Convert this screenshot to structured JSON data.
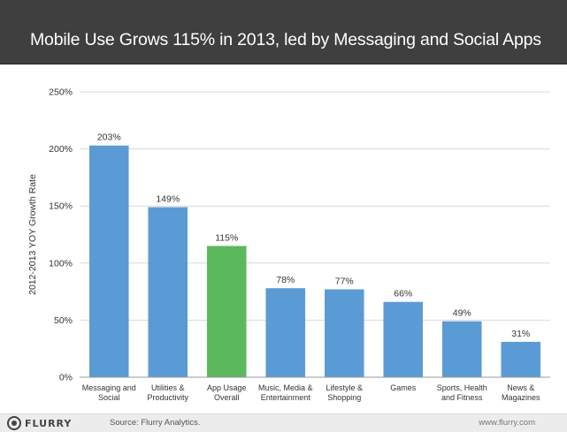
{
  "header": {
    "title": "Mobile Use Grows 115% in 2013, led by Messaging and Social Apps"
  },
  "chart_data": {
    "type": "bar",
    "title": "Mobile Use Grows 115% in 2013, led by Messaging and Social Apps",
    "xlabel": "",
    "ylabel": "2012-2013 YOY Growth Rate",
    "ylim": [
      0,
      250
    ],
    "yticks": [
      0,
      50,
      100,
      150,
      200,
      250
    ],
    "ytick_labels": [
      "0%",
      "50%",
      "100%",
      "150%",
      "200%",
      "250%"
    ],
    "grid": true,
    "legend": "none",
    "categories": [
      [
        "Messaging and",
        "Social"
      ],
      [
        "Utilities &",
        "Productivity"
      ],
      [
        "App Usage",
        "Overall"
      ],
      [
        "Music, Media &",
        "Entertainment"
      ],
      [
        "Lifestyle &",
        "Shopping"
      ],
      [
        "Games"
      ],
      [
        "Sports, Health",
        "and Fitness"
      ],
      [
        "News &",
        "Magazines"
      ]
    ],
    "values": [
      203,
      149,
      115,
      78,
      77,
      66,
      49,
      31
    ],
    "data_labels": [
      "203%",
      "149%",
      "115%",
      "78%",
      "77%",
      "66%",
      "49%",
      "31%"
    ],
    "colors": {
      "default": "#5b9bd5",
      "highlight": "#5cb85c",
      "highlight_index": 2
    }
  },
  "footer": {
    "logo_text": "FLURRY",
    "source": "Source: Flurry Analytics.",
    "site": "www.flurry.com"
  }
}
